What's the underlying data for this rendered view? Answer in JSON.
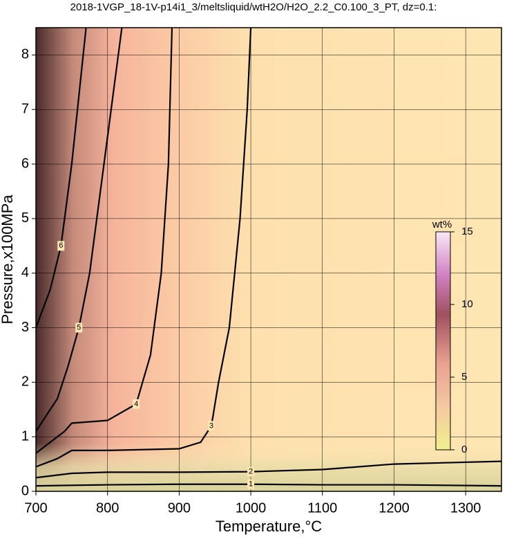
{
  "chart_data": {
    "type": "contour",
    "title": "2018-1VGP_18-1V-p14i1_3/meltsliquid/wtH2O/H2O_2.2_C0.100_3_PT, dz=0.1:",
    "x_label": "Temperature,°C",
    "y_label": "Pressure,x100MPa",
    "xlim": [
      700,
      1350
    ],
    "ylim": [
      0,
      8.5
    ],
    "xticks": [
      700,
      800,
      900,
      1000,
      1100,
      1200,
      1300
    ],
    "yticks": [
      0,
      1,
      2,
      3,
      4,
      5,
      6,
      7,
      8
    ],
    "grid": true,
    "contours": [
      {
        "level": 1,
        "x": [
          700,
          800,
          900,
          1000,
          1100,
          1200,
          1350
        ],
        "y": [
          0.1,
          0.12,
          0.13,
          0.13,
          0.12,
          0.12,
          0.1
        ]
      },
      {
        "level": 2,
        "x": [
          700,
          750,
          800,
          900,
          1000,
          1100,
          1200,
          1350
        ],
        "y": [
          0.25,
          0.33,
          0.35,
          0.35,
          0.36,
          0.4,
          0.5,
          0.55
        ]
      },
      {
        "level": 3,
        "x": [
          700,
          730,
          750,
          800,
          900,
          930,
          945,
          955,
          970,
          985,
          995,
          1000
        ],
        "y": [
          0.45,
          0.6,
          0.75,
          0.75,
          0.78,
          0.9,
          1.2,
          2,
          3,
          5,
          7,
          8.5
        ]
      },
      {
        "level": 4,
        "x": [
          700,
          740,
          750,
          800,
          840,
          860,
          875,
          885,
          890
        ],
        "y": [
          0.7,
          1.1,
          1.25,
          1.3,
          1.6,
          2.5,
          4,
          6,
          8.5
        ]
      },
      {
        "level": 5,
        "x": [
          700,
          730,
          745,
          760,
          775,
          795,
          820
        ],
        "y": [
          1.1,
          1.7,
          2.3,
          3,
          4,
          6,
          8.5
        ]
      },
      {
        "level": 6,
        "x": [
          700,
          720,
          735,
          750,
          770
        ],
        "y": [
          3,
          3.7,
          4.5,
          6,
          8.5
        ]
      }
    ],
    "colorbar": {
      "label": "wt%",
      "lim": [
        0,
        15
      ],
      "ticks": [
        0,
        5,
        10,
        15
      ]
    }
  }
}
